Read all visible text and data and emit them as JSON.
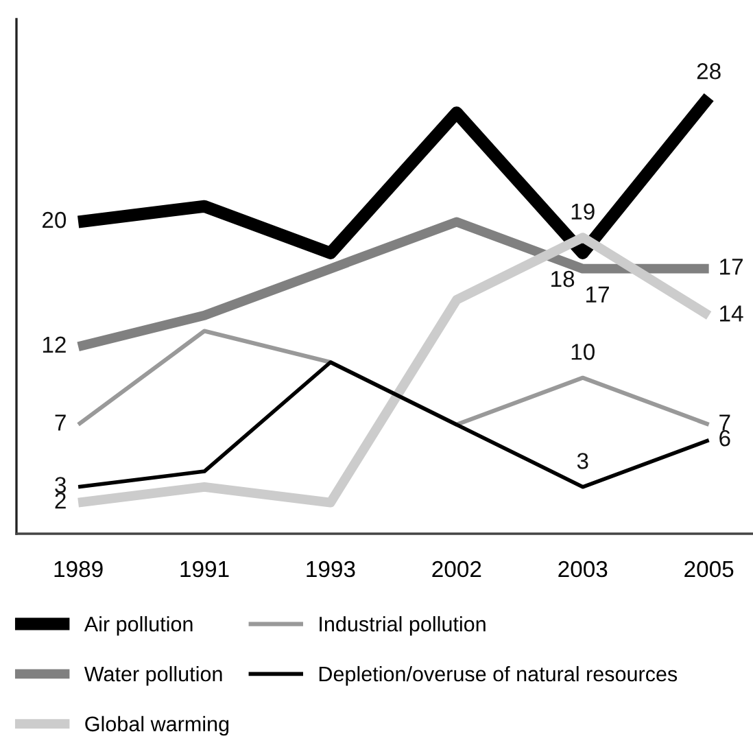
{
  "chart_data": {
    "type": "line",
    "categories": [
      "1989",
      "1991",
      "1993",
      "2002",
      "2003",
      "2005"
    ],
    "series": [
      {
        "name": "Air pollution",
        "color": "#000000",
        "values": [
          20,
          21,
          18,
          27,
          18,
          28
        ],
        "value_labels": [
          "20",
          null,
          null,
          null,
          "18",
          "28"
        ]
      },
      {
        "name": "Water pollution",
        "color": "#808080",
        "values": [
          12,
          14,
          17,
          20,
          17,
          17
        ],
        "value_labels": [
          "12",
          null,
          null,
          null,
          "17",
          "17"
        ]
      },
      {
        "name": "Global warming",
        "color": "#cccccc",
        "values": [
          2,
          3,
          2,
          15,
          19,
          14
        ],
        "value_labels": [
          "2",
          null,
          null,
          null,
          "19",
          "14"
        ]
      },
      {
        "name": "Industrial pollution",
        "color": "#999999",
        "values": [
          7,
          13,
          11,
          7,
          10,
          7
        ],
        "value_labels": [
          "7",
          null,
          null,
          null,
          "10",
          "7"
        ]
      },
      {
        "name": "Depletion/overuse of natural resources",
        "color": "#000000",
        "values": [
          3,
          4,
          11,
          7,
          3,
          6
        ],
        "value_labels": [
          "3",
          null,
          null,
          null,
          "3",
          "6"
        ]
      }
    ],
    "ylim": [
      0,
      33
    ],
    "tick_labels": "x",
    "legend": "bottom",
    "line_style": "solid"
  }
}
